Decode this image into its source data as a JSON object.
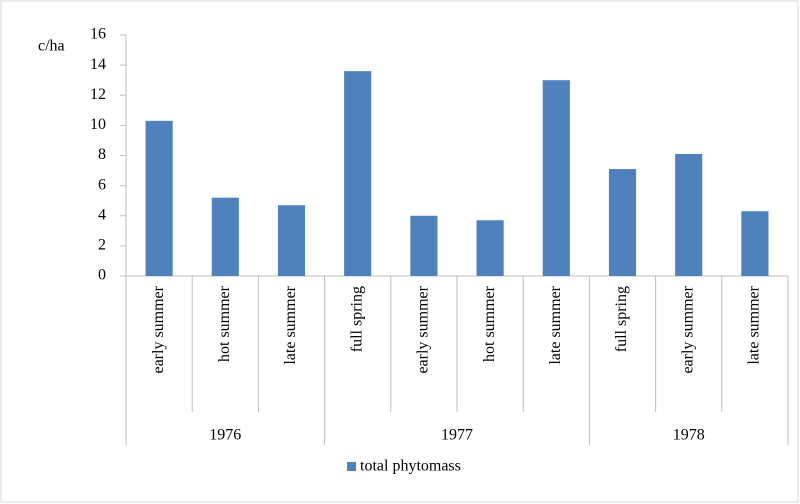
{
  "chart_data": {
    "type": "bar",
    "y_label": "c/ha",
    "groups": [
      {
        "name": "1976",
        "categories": [
          "early summer",
          "hot summer",
          "late summer"
        ]
      },
      {
        "name": "1977",
        "categories": [
          "full spring",
          "early summer",
          "hot summer",
          "late summer"
        ]
      },
      {
        "name": "1978",
        "categories": [
          "full spring",
          "early summer",
          "late summer"
        ]
      }
    ],
    "series": [
      {
        "name": "total phytomass",
        "color": "#4f81bd",
        "values": [
          10.3,
          5.2,
          4.7,
          13.6,
          4.0,
          3.7,
          13.0,
          7.1,
          8.1,
          4.3
        ]
      }
    ],
    "ylim": [
      0,
      16
    ],
    "yticks": [
      0,
      2,
      4,
      6,
      8,
      10,
      12,
      14,
      16
    ],
    "grid": false,
    "legend": "bottom"
  }
}
